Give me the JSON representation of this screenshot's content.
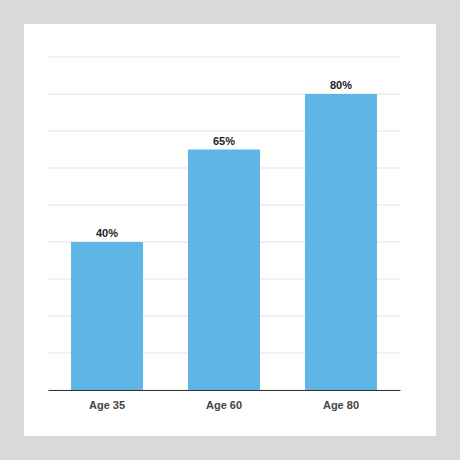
{
  "chart_data": {
    "type": "bar",
    "categories": [
      "Age 35",
      "Age 60",
      "Age 80"
    ],
    "values": [
      40,
      65,
      80
    ],
    "value_labels": [
      "40%",
      "65%",
      "80%"
    ],
    "color": "#5eb5e6",
    "ylim": [
      0,
      90
    ],
    "yticks": [
      0,
      10,
      20,
      30,
      40,
      50,
      60,
      70,
      80,
      90
    ],
    "grid": true,
    "data_labels": true,
    "tick_labels": "x"
  }
}
